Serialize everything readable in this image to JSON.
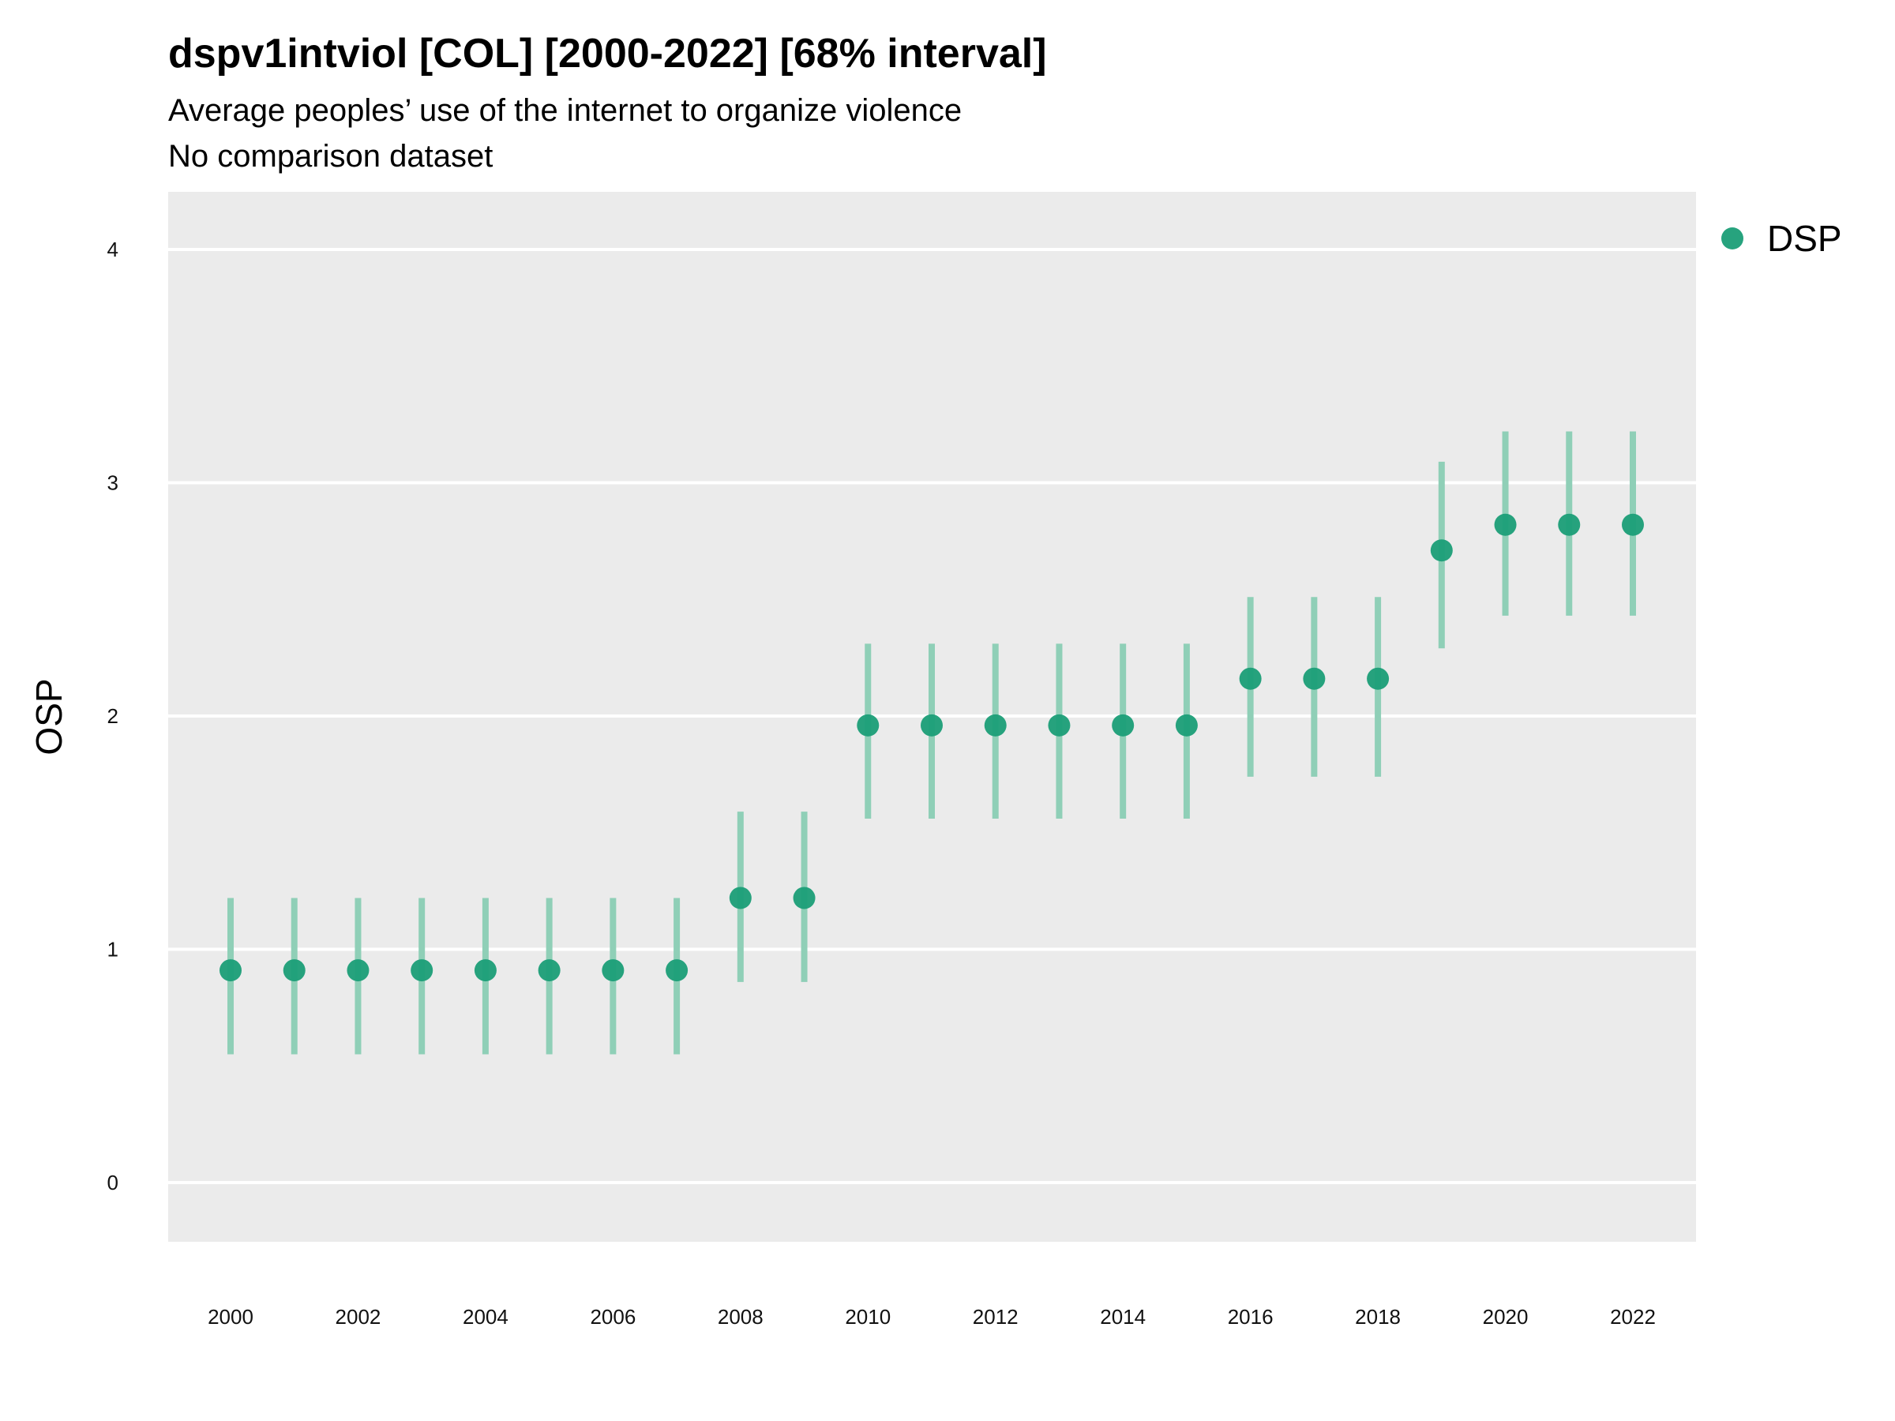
{
  "title": "dspv1intviol [COL] [2000-2022] [68% interval]",
  "subtitle": "Average peoples’ use of the internet to organize violence",
  "subtitle2": "No comparison dataset",
  "colors": {
    "panel": "#ebebeb",
    "grid": "#ffffff",
    "point": "#1b9e77",
    "interval": "#8fcfb7"
  },
  "chart_data": {
    "type": "scatter",
    "title": "dspv1intviol [COL] [2000-2022] [68% interval]",
    "xlabel": "",
    "ylabel": "OSP",
    "ylim": [
      -0.25,
      4.25
    ],
    "xlim": [
      1999,
      2023
    ],
    "yticks": [
      0,
      1,
      2,
      3,
      4
    ],
    "xticks": [
      2000,
      2002,
      2004,
      2006,
      2008,
      2010,
      2012,
      2014,
      2016,
      2018,
      2020,
      2022
    ],
    "grid": true,
    "legend_position": "right",
    "series": [
      {
        "name": "DSP",
        "x": [
          2000,
          2001,
          2002,
          2003,
          2004,
          2005,
          2006,
          2007,
          2008,
          2009,
          2010,
          2011,
          2012,
          2013,
          2014,
          2015,
          2016,
          2017,
          2018,
          2019,
          2020,
          2021,
          2022
        ],
        "y": [
          0.91,
          0.91,
          0.91,
          0.91,
          0.91,
          0.91,
          0.91,
          0.91,
          1.22,
          1.22,
          1.96,
          1.96,
          1.96,
          1.96,
          1.96,
          1.96,
          2.16,
          2.16,
          2.16,
          2.71,
          2.82,
          2.82,
          2.82
        ],
        "lower": [
          0.55,
          0.55,
          0.55,
          0.55,
          0.55,
          0.55,
          0.55,
          0.55,
          0.86,
          0.86,
          1.56,
          1.56,
          1.56,
          1.56,
          1.56,
          1.56,
          1.74,
          1.74,
          1.74,
          2.29,
          2.43,
          2.43,
          2.43
        ],
        "upper": [
          1.22,
          1.22,
          1.22,
          1.22,
          1.22,
          1.22,
          1.22,
          1.22,
          1.59,
          1.59,
          2.31,
          2.31,
          2.31,
          2.31,
          2.31,
          2.31,
          2.51,
          2.51,
          2.51,
          3.09,
          3.22,
          3.22,
          3.22
        ]
      }
    ]
  }
}
